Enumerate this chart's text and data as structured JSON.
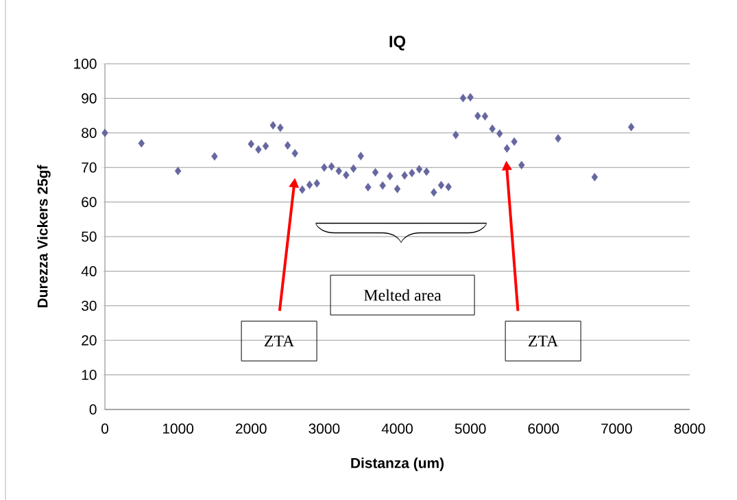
{
  "chart_data": {
    "type": "scatter",
    "title": "IQ",
    "xlabel": "Distanza (um)",
    "ylabel": "Durezza Vickers 25gf",
    "x": [
      0,
      500,
      1000,
      1500,
      2000,
      2100,
      2200,
      2300,
      2400,
      2500,
      2600,
      2700,
      2800,
      2900,
      3000,
      3100,
      3200,
      3300,
      3400,
      3500,
      3600,
      3700,
      3800,
      3900,
      4000,
      4100,
      4200,
      4300,
      4400,
      4500,
      4600,
      4700,
      4800,
      4900,
      5000,
      5100,
      5200,
      5300,
      5400,
      5500,
      5600,
      5700,
      6200,
      6700,
      7200
    ],
    "values": [
      80,
      77,
      69,
      73.2,
      76.8,
      75.2,
      76.2,
      82.2,
      81.5,
      76.4,
      74.1,
      63.6,
      65,
      65.4,
      70,
      70.3,
      69,
      67.8,
      69.7,
      73.3,
      64.3,
      68.6,
      64.8,
      67.5,
      63.8,
      67.7,
      68.4,
      69.5,
      68.8,
      62.8,
      64.9,
      64.4,
      79.4,
      90.1,
      90.3,
      84.9,
      84.8,
      81.2,
      79.8,
      75.5,
      77.5,
      70.7,
      78.4,
      67.2,
      81.7
    ],
    "color": "#6666a0",
    "marker": "diamond",
    "grid": "y",
    "xlim": [
      0,
      8000
    ],
    "xticks": [
      0,
      1000,
      2000,
      3000,
      4000,
      5000,
      6000,
      7000,
      8000
    ],
    "ylim": [
      0,
      100
    ],
    "yticks": [
      0,
      10,
      20,
      30,
      40,
      50,
      60,
      70,
      80,
      90,
      100
    ],
    "annotations": [
      "ZTA",
      "Melted area",
      "ZTA"
    ]
  }
}
